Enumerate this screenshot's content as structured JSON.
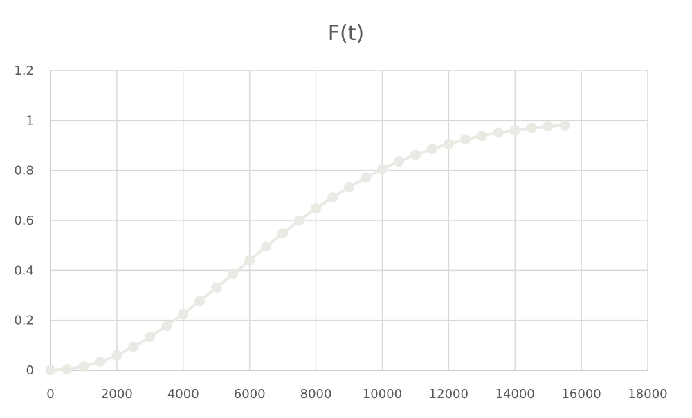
{
  "chart_data": {
    "type": "line",
    "title": "F(t)",
    "xlabel": "",
    "ylabel": "",
    "xlim": [
      0,
      18000
    ],
    "ylim": [
      0,
      1.2
    ],
    "x_ticks": [
      "0",
      "2000",
      "4000",
      "6000",
      "8000",
      "10000",
      "12000",
      "14000",
      "16000",
      "18000"
    ],
    "y_ticks": [
      "0",
      "0.2",
      "0.4",
      "0.6",
      "0.8",
      "1",
      "1.2"
    ],
    "grid": true,
    "legend": "none",
    "series_color": "#ebe9e4",
    "series": [
      {
        "x": [
          0,
          500,
          1000,
          1500,
          2000,
          2500,
          3000,
          3500,
          4000,
          4500,
          5000,
          5500,
          6000,
          6500,
          7000,
          7500,
          8000,
          8500,
          9000,
          9500,
          10000,
          10500,
          11000,
          11500,
          12000,
          12500,
          13000,
          13500,
          14000,
          14500,
          15000,
          15500
        ],
        "values": [
          0,
          0.004,
          0.015,
          0.034,
          0.06,
          0.094,
          0.134,
          0.178,
          0.226,
          0.277,
          0.331,
          0.385,
          0.44,
          0.495,
          0.548,
          0.6,
          0.648,
          0.692,
          0.733,
          0.771,
          0.805,
          0.836,
          0.862,
          0.886,
          0.906,
          0.924,
          0.938,
          0.951,
          0.961,
          0.97,
          0.977,
          0.98
        ]
      }
    ]
  }
}
